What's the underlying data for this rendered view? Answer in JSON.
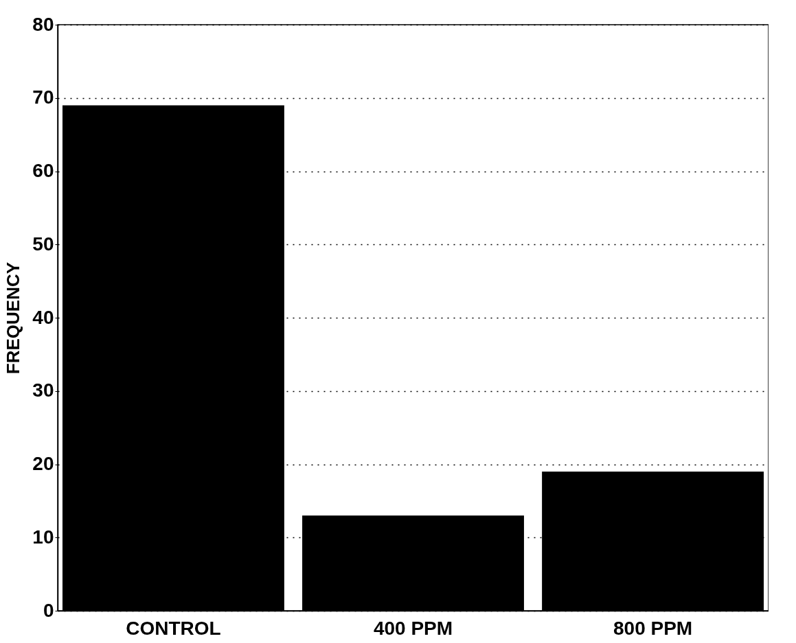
{
  "chart_data": {
    "type": "bar",
    "ylabel": "FREQUENCY",
    "categories": [
      "CONTROL",
      "400 PPM",
      "800 PPM"
    ],
    "values": [
      69,
      13,
      19
    ],
    "color": "#000000",
    "ylim": [
      0,
      80
    ],
    "yticks": [
      0,
      10,
      20,
      30,
      40,
      50,
      60,
      70,
      80
    ],
    "grid": "y"
  }
}
